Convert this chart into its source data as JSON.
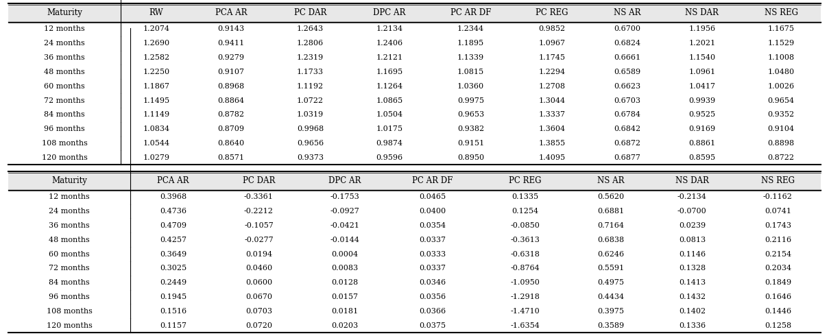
{
  "upper_headers": [
    "Maturity",
    "RW",
    "PCA AR",
    "PC DAR",
    "DPC AR",
    "PC AR DF",
    "PC REG",
    "NS AR",
    "NS DAR",
    "NS REG"
  ],
  "upper_rows": [
    [
      "12 months",
      "1.2074",
      "0.9143",
      "1.2643",
      "1.2134",
      "1.2344",
      "0.9852",
      "0.6700",
      "1.1956",
      "1.1675"
    ],
    [
      "24 months",
      "1.2690",
      "0.9411",
      "1.2806",
      "1.2406",
      "1.1895",
      "1.0967",
      "0.6824",
      "1.2021",
      "1.1529"
    ],
    [
      "36 months",
      "1.2582",
      "0.9279",
      "1.2319",
      "1.2121",
      "1.1339",
      "1.1745",
      "0.6661",
      "1.1540",
      "1.1008"
    ],
    [
      "48 months",
      "1.2250",
      "0.9107",
      "1.1733",
      "1.1695",
      "1.0815",
      "1.2294",
      "0.6589",
      "1.0961",
      "1.0480"
    ],
    [
      "60 months",
      "1.1867",
      "0.8968",
      "1.1192",
      "1.1264",
      "1.0360",
      "1.2708",
      "0.6623",
      "1.0417",
      "1.0026"
    ],
    [
      "72 months",
      "1.1495",
      "0.8864",
      "1.0722",
      "1.0865",
      "0.9975",
      "1.3044",
      "0.6703",
      "0.9939",
      "0.9654"
    ],
    [
      "84 months",
      "1.1149",
      "0.8782",
      "1.0319",
      "1.0504",
      "0.9653",
      "1.3337",
      "0.6784",
      "0.9525",
      "0.9352"
    ],
    [
      "96 months",
      "1.0834",
      "0.8709",
      "0.9968",
      "1.0175",
      "0.9382",
      "1.3604",
      "0.6842",
      "0.9169",
      "0.9104"
    ],
    [
      "108 months",
      "1.0544",
      "0.8640",
      "0.9656",
      "0.9874",
      "0.9151",
      "1.3855",
      "0.6872",
      "0.8861",
      "0.8898"
    ],
    [
      "120 months",
      "1.0279",
      "0.8571",
      "0.9373",
      "0.9596",
      "0.8950",
      "1.4095",
      "0.6877",
      "0.8595",
      "0.8722"
    ]
  ],
  "lower_headers": [
    "Maturity",
    "PCA AR",
    "PC DAR",
    "DPC AR",
    "PC AR DF",
    "PC REG",
    "NS AR",
    "NS DAR",
    "NS REG"
  ],
  "lower_rows": [
    [
      "12 months",
      "0.3968",
      "-0.3361",
      "-0.1753",
      "0.0465",
      "0.1335",
      "0.5620",
      "-0.2134",
      "-0.1162"
    ],
    [
      "24 months",
      "0.4736",
      "-0.2212",
      "-0.0927",
      "0.0400",
      "0.1254",
      "0.6881",
      "-0.0700",
      "0.0741"
    ],
    [
      "36 months",
      "0.4709",
      "-0.1057",
      "-0.0421",
      "0.0354",
      "-0.0850",
      "0.7164",
      "0.0239",
      "0.1743"
    ],
    [
      "48 months",
      "0.4257",
      "-0.0277",
      "-0.0144",
      "0.0337",
      "-0.3613",
      "0.6838",
      "0.0813",
      "0.2116"
    ],
    [
      "60 months",
      "0.3649",
      "0.0194",
      "0.0004",
      "0.0333",
      "-0.6318",
      "0.6246",
      "0.1146",
      "0.2154"
    ],
    [
      "72 months",
      "0.3025",
      "0.0460",
      "0.0083",
      "0.0337",
      "-0.8764",
      "0.5591",
      "0.1328",
      "0.2034"
    ],
    [
      "84 months",
      "0.2449",
      "0.0600",
      "0.0128",
      "0.0346",
      "-1.0950",
      "0.4975",
      "0.1413",
      "0.1849"
    ],
    [
      "96 months",
      "0.1945",
      "0.0670",
      "0.0157",
      "0.0356",
      "-1.2918",
      "0.4434",
      "0.1432",
      "0.1646"
    ],
    [
      "108 months",
      "0.1516",
      "0.0703",
      "0.0181",
      "0.0366",
      "-1.4710",
      "0.3975",
      "0.1402",
      "0.1446"
    ],
    [
      "120 months",
      "0.1157",
      "0.0720",
      "0.0203",
      "0.0375",
      "-1.6354",
      "0.3589",
      "0.1336",
      "0.1258"
    ]
  ],
  "bg_color": "#ffffff",
  "font_size": 8.0,
  "header_font_size": 8.5,
  "fig_width": 12.09,
  "fig_height": 4.9,
  "dpi": 100
}
